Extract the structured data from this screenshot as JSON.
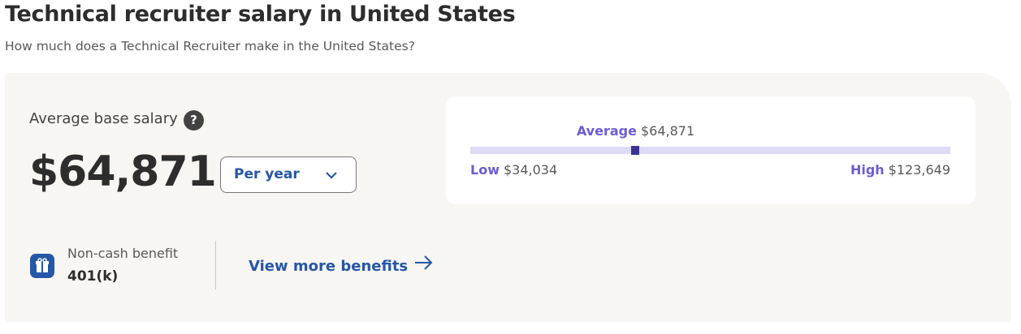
{
  "header": {
    "title": "Technical recruiter salary in United States",
    "subtitle": "How much does a Technical Recruiter make in the United States?"
  },
  "salary": {
    "label": "Average base salary",
    "help_icon": "?",
    "amount": "$64,871",
    "period": "Per year"
  },
  "benefit": {
    "label": "Non-cash benefit",
    "value": "401(k)",
    "link": "View more benefits"
  },
  "range": {
    "average": {
      "name": "Average",
      "value": 64871,
      "label": "$64,871"
    },
    "low": {
      "name": "Low",
      "value": 34034,
      "label": "$34,034"
    },
    "high": {
      "name": "High",
      "value": 123649,
      "label": "$123,649"
    }
  }
}
